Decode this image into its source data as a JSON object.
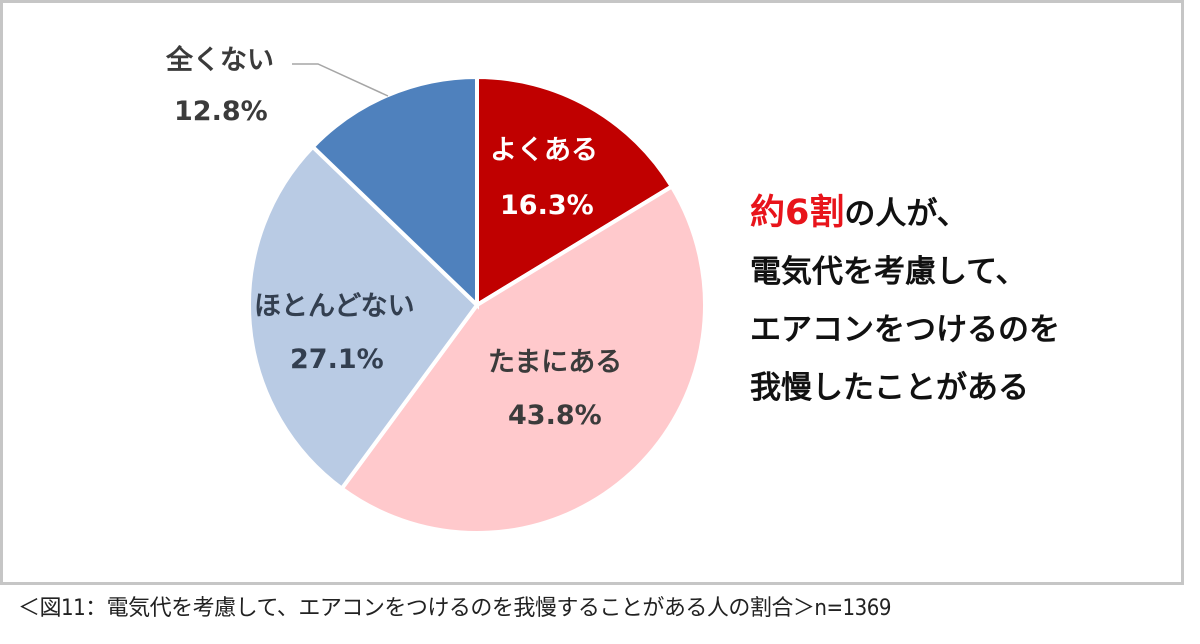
{
  "chart_data": {
    "type": "pie",
    "title": "",
    "n": 1369,
    "start_angle_deg": 0,
    "direction": "clockwise",
    "slices": [
      {
        "label": "よくある",
        "value": 16.3,
        "display": "16.3%",
        "color": "#c00000",
        "text_color": "#ffffff"
      },
      {
        "label": "たまにある",
        "value": 43.8,
        "display": "43.8%",
        "color": "#ffc9cc",
        "text_color": "#3b3b3b"
      },
      {
        "label": "ほとんどない",
        "value": 27.1,
        "display": "27.1%",
        "color": "#b9cbe4",
        "text_color": "#333f50"
      },
      {
        "label": "全くない",
        "value": 12.8,
        "display": "12.8%",
        "color": "#4f81bd",
        "text_color": "#3b3b3b"
      }
    ]
  },
  "headline": {
    "highlight": "約6割",
    "line1_rest": "の人が、",
    "line2": "電気代を考慮して、",
    "line3": "エアコンをつけるのを",
    "line4": "我慢したことがある"
  },
  "caption": "＜図11：電気代を考慮して、エアコンをつけるのを我慢することがある人の割合＞n=1369"
}
